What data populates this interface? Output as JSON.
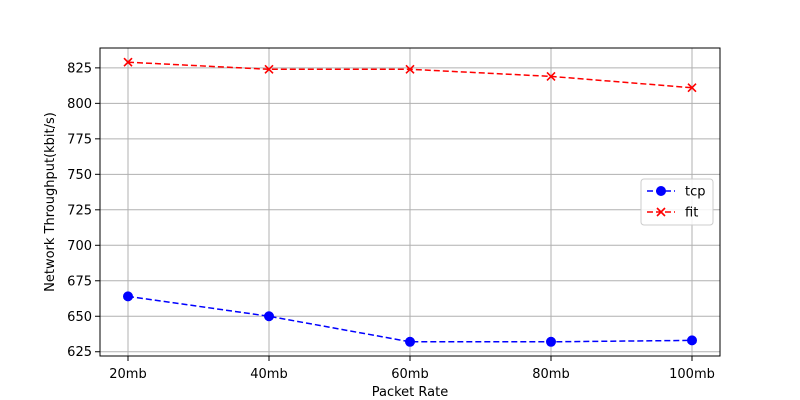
{
  "chart_data": {
    "type": "line",
    "title": "",
    "xlabel": "Packet Rate",
    "ylabel": "Network Throughput(kbit/s)",
    "categories": [
      "20mb",
      "40mb",
      "60mb",
      "80mb",
      "100mb"
    ],
    "ylim": [
      622,
      839
    ],
    "yticks": [
      625,
      650,
      675,
      700,
      725,
      750,
      775,
      800,
      825
    ],
    "grid": true,
    "legend_position": "right",
    "series": [
      {
        "name": "tcp",
        "values": [
          664,
          650,
          632,
          632,
          633
        ],
        "color": "#0000ff",
        "marker": "circle",
        "line_style": "dashed"
      },
      {
        "name": "fit",
        "values": [
          829,
          824,
          824,
          819,
          811
        ],
        "color": "#ff0000",
        "marker": "x",
        "line_style": "dashed"
      }
    ]
  }
}
